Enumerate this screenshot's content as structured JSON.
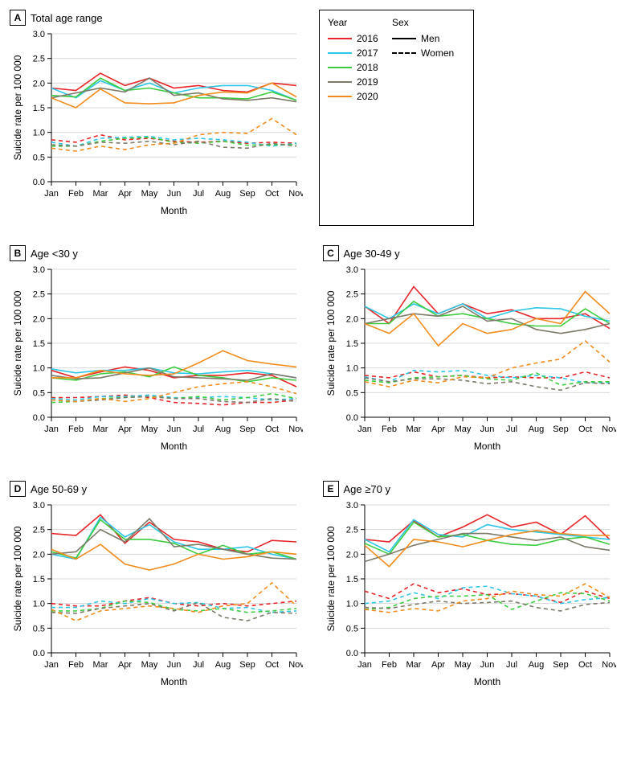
{
  "months": [
    "Jan",
    "Feb",
    "Mar",
    "Apr",
    "May",
    "Jun",
    "Jul",
    "Aug",
    "Sep",
    "Oct",
    "Nov"
  ],
  "ylabel": "Suicide rate per 100 000",
  "xlabel": "Month",
  "ylim": [
    0,
    3.0
  ],
  "ytick_step": 0.5,
  "grid_color": "#d9d9d9",
  "axis_color": "#000000",
  "background_color": "#ffffff",
  "axis_fontsize": 11,
  "label_fontsize": 12,
  "line_width": 1.6,
  "legend": {
    "year_title": "Year",
    "years": [
      {
        "label": "2016",
        "color": "#e8262a"
      },
      {
        "label": "2017",
        "color": "#2ec6e6"
      },
      {
        "label": "2018",
        "color": "#3dcc3d"
      },
      {
        "label": "2019",
        "color": "#7d7a69"
      },
      {
        "label": "2020",
        "color": "#f28c1c"
      }
    ],
    "sex_title": "Sex",
    "sexes": [
      {
        "label": "Men",
        "dash": "solid"
      },
      {
        "label": "Women",
        "dash": "dashed"
      }
    ]
  },
  "panels": [
    {
      "letter": "A",
      "title": "Total age range",
      "series": [
        {
          "color": "#e8262a",
          "dash": "solid",
          "values": [
            1.9,
            1.85,
            2.2,
            1.95,
            2.1,
            1.9,
            1.95,
            1.85,
            1.82,
            2.0,
            1.95
          ]
        },
        {
          "color": "#2ec6e6",
          "dash": "solid",
          "values": [
            1.9,
            1.7,
            2.05,
            1.85,
            2.0,
            1.8,
            1.9,
            1.95,
            1.95,
            1.85,
            1.65
          ]
        },
        {
          "color": "#3dcc3d",
          "dash": "solid",
          "values": [
            1.75,
            1.72,
            2.1,
            1.85,
            1.9,
            1.8,
            1.7,
            1.7,
            1.68,
            1.82,
            1.65
          ]
        },
        {
          "color": "#7d7a69",
          "dash": "solid",
          "values": [
            1.7,
            1.8,
            1.9,
            1.82,
            2.1,
            1.75,
            1.8,
            1.68,
            1.65,
            1.7,
            1.62
          ]
        },
        {
          "color": "#f28c1c",
          "dash": "solid",
          "values": [
            1.7,
            1.5,
            1.88,
            1.6,
            1.58,
            1.6,
            1.75,
            1.82,
            1.8,
            2.0,
            1.72
          ]
        },
        {
          "color": "#e8262a",
          "dash": "dashed",
          "values": [
            0.85,
            0.8,
            0.95,
            0.85,
            0.88,
            0.82,
            0.8,
            0.82,
            0.78,
            0.8,
            0.78
          ]
        },
        {
          "color": "#2ec6e6",
          "dash": "dashed",
          "values": [
            0.8,
            0.72,
            0.88,
            0.9,
            0.92,
            0.85,
            0.88,
            0.85,
            0.8,
            0.72,
            0.78
          ]
        },
        {
          "color": "#3dcc3d",
          "dash": "dashed",
          "values": [
            0.72,
            0.72,
            0.82,
            0.88,
            0.9,
            0.8,
            0.78,
            0.82,
            0.74,
            0.75,
            0.75
          ]
        },
        {
          "color": "#7d7a69",
          "dash": "dashed",
          "values": [
            0.75,
            0.72,
            0.8,
            0.78,
            0.82,
            0.75,
            0.82,
            0.7,
            0.68,
            0.78,
            0.72
          ]
        },
        {
          "color": "#f28c1c",
          "dash": "dashed",
          "values": [
            0.68,
            0.62,
            0.72,
            0.65,
            0.75,
            0.78,
            0.95,
            1.0,
            0.98,
            1.28,
            0.95
          ]
        }
      ]
    },
    {
      "letter": "B",
      "title": "Age <30 y",
      "series": [
        {
          "color": "#e8262a",
          "dash": "solid",
          "values": [
            0.95,
            0.8,
            0.92,
            1.02,
            0.95,
            0.8,
            0.85,
            0.85,
            0.9,
            0.85,
            0.62
          ]
        },
        {
          "color": "#2ec6e6",
          "dash": "solid",
          "values": [
            0.98,
            0.9,
            0.95,
            0.95,
            1.0,
            0.9,
            0.88,
            0.92,
            0.95,
            0.88,
            0.8
          ]
        },
        {
          "color": "#3dcc3d",
          "dash": "solid",
          "values": [
            0.8,
            0.75,
            0.88,
            0.92,
            0.82,
            1.02,
            0.85,
            0.8,
            0.72,
            0.8,
            0.75
          ]
        },
        {
          "color": "#7d7a69",
          "dash": "solid",
          "values": [
            0.85,
            0.78,
            0.8,
            0.9,
            1.0,
            0.82,
            0.8,
            0.78,
            0.75,
            0.88,
            0.8
          ]
        },
        {
          "color": "#f28c1c",
          "dash": "solid",
          "values": [
            0.8,
            0.8,
            0.95,
            0.88,
            0.85,
            0.88,
            1.1,
            1.35,
            1.15,
            1.08,
            1.02
          ]
        },
        {
          "color": "#e8262a",
          "dash": "dashed",
          "values": [
            0.4,
            0.4,
            0.42,
            0.45,
            0.4,
            0.3,
            0.28,
            0.25,
            0.3,
            0.3,
            0.35
          ]
        },
        {
          "color": "#2ec6e6",
          "dash": "dashed",
          "values": [
            0.38,
            0.35,
            0.42,
            0.42,
            0.45,
            0.4,
            0.4,
            0.42,
            0.4,
            0.35,
            0.38
          ]
        },
        {
          "color": "#3dcc3d",
          "dash": "dashed",
          "values": [
            0.3,
            0.32,
            0.38,
            0.4,
            0.42,
            0.38,
            0.42,
            0.35,
            0.4,
            0.48,
            0.38
          ]
        },
        {
          "color": "#7d7a69",
          "dash": "dashed",
          "values": [
            0.35,
            0.32,
            0.35,
            0.4,
            0.42,
            0.38,
            0.38,
            0.32,
            0.3,
            0.38,
            0.32
          ]
        },
        {
          "color": "#f28c1c",
          "dash": "dashed",
          "values": [
            0.35,
            0.32,
            0.38,
            0.32,
            0.38,
            0.5,
            0.62,
            0.68,
            0.72,
            0.62,
            0.48
          ]
        }
      ]
    },
    {
      "letter": "C",
      "title": "Age 30-49 y",
      "series": [
        {
          "color": "#e8262a",
          "dash": "solid",
          "values": [
            2.25,
            1.9,
            2.65,
            2.1,
            2.3,
            2.1,
            2.18,
            2.0,
            2.0,
            2.1,
            1.8
          ]
        },
        {
          "color": "#2ec6e6",
          "dash": "solid",
          "values": [
            2.25,
            2.0,
            2.3,
            2.1,
            2.3,
            2.0,
            2.15,
            2.22,
            2.2,
            2.05,
            1.95
          ]
        },
        {
          "color": "#3dcc3d",
          "dash": "solid",
          "values": [
            1.9,
            1.9,
            2.35,
            2.05,
            2.1,
            2.0,
            1.9,
            1.85,
            1.85,
            2.2,
            1.9
          ]
        },
        {
          "color": "#7d7a69",
          "dash": "solid",
          "values": [
            1.9,
            2.0,
            2.1,
            2.05,
            2.25,
            1.95,
            2.0,
            1.78,
            1.7,
            1.78,
            1.9
          ]
        },
        {
          "color": "#f28c1c",
          "dash": "solid",
          "values": [
            1.9,
            1.7,
            2.1,
            1.45,
            1.9,
            1.7,
            1.78,
            2.0,
            1.9,
            2.55,
            2.1
          ]
        },
        {
          "color": "#e8262a",
          "dash": "dashed",
          "values": [
            0.85,
            0.8,
            0.92,
            0.82,
            0.85,
            0.8,
            0.82,
            0.8,
            0.8,
            0.92,
            0.8
          ]
        },
        {
          "color": "#2ec6e6",
          "dash": "dashed",
          "values": [
            0.82,
            0.72,
            0.95,
            0.92,
            0.95,
            0.85,
            0.8,
            0.85,
            0.8,
            0.7,
            0.7
          ]
        },
        {
          "color": "#3dcc3d",
          "dash": "dashed",
          "values": [
            0.75,
            0.7,
            0.8,
            0.82,
            0.85,
            0.78,
            0.75,
            0.9,
            0.65,
            0.72,
            0.72
          ]
        },
        {
          "color": "#7d7a69",
          "dash": "dashed",
          "values": [
            0.8,
            0.72,
            0.78,
            0.78,
            0.75,
            0.68,
            0.72,
            0.62,
            0.55,
            0.7,
            0.68
          ]
        },
        {
          "color": "#f28c1c",
          "dash": "dashed",
          "values": [
            0.72,
            0.62,
            0.75,
            0.7,
            0.82,
            0.8,
            1.0,
            1.1,
            1.18,
            1.55,
            1.12
          ]
        }
      ]
    },
    {
      "letter": "D",
      "title": "Age 50-69 y",
      "series": [
        {
          "color": "#e8262a",
          "dash": "solid",
          "values": [
            2.42,
            2.38,
            2.8,
            2.22,
            2.65,
            2.3,
            2.25,
            2.1,
            2.05,
            2.28,
            2.25
          ]
        },
        {
          "color": "#2ec6e6",
          "dash": "solid",
          "values": [
            2.0,
            1.9,
            2.75,
            2.35,
            2.6,
            2.25,
            2.1,
            2.1,
            2.15,
            2.0,
            1.9
          ]
        },
        {
          "color": "#3dcc3d",
          "dash": "solid",
          "values": [
            2.05,
            1.92,
            2.7,
            2.3,
            2.3,
            2.22,
            2.0,
            2.18,
            2.0,
            2.05,
            1.9
          ]
        },
        {
          "color": "#7d7a69",
          "dash": "solid",
          "values": [
            2.0,
            2.05,
            2.5,
            2.25,
            2.72,
            2.15,
            2.2,
            2.1,
            2.0,
            1.92,
            1.9
          ]
        },
        {
          "color": "#f28c1c",
          "dash": "solid",
          "values": [
            2.1,
            1.9,
            2.2,
            1.8,
            1.68,
            1.8,
            2.0,
            1.9,
            1.95,
            2.05,
            2.0
          ]
        },
        {
          "color": "#e8262a",
          "dash": "dashed",
          "values": [
            1.0,
            0.95,
            0.95,
            1.05,
            1.12,
            1.0,
            0.95,
            1.0,
            0.95,
            1.0,
            1.05
          ]
        },
        {
          "color": "#2ec6e6",
          "dash": "dashed",
          "values": [
            0.92,
            0.92,
            1.05,
            1.0,
            1.1,
            1.0,
            1.02,
            0.9,
            0.92,
            0.82,
            0.85
          ]
        },
        {
          "color": "#3dcc3d",
          "dash": "dashed",
          "values": [
            0.85,
            0.85,
            0.9,
            1.05,
            1.02,
            0.88,
            0.85,
            0.9,
            0.82,
            0.85,
            0.9
          ]
        },
        {
          "color": "#7d7a69",
          "dash": "dashed",
          "values": [
            0.82,
            0.8,
            0.9,
            0.95,
            1.0,
            0.85,
            1.02,
            0.72,
            0.65,
            0.82,
            0.8
          ]
        },
        {
          "color": "#f28c1c",
          "dash": "dashed",
          "values": [
            0.88,
            0.65,
            0.85,
            0.9,
            0.95,
            0.9,
            0.82,
            0.95,
            1.0,
            1.42,
            0.95
          ]
        }
      ]
    },
    {
      "letter": "E",
      "title": "Age ≥70 y",
      "series": [
        {
          "color": "#e8262a",
          "dash": "solid",
          "values": [
            2.3,
            2.25,
            2.68,
            2.35,
            2.55,
            2.8,
            2.55,
            2.65,
            2.4,
            2.78,
            2.3
          ]
        },
        {
          "color": "#2ec6e6",
          "dash": "solid",
          "values": [
            2.3,
            2.05,
            2.7,
            2.4,
            2.35,
            2.6,
            2.5,
            2.45,
            2.4,
            2.35,
            2.3
          ]
        },
        {
          "color": "#3dcc3d",
          "dash": "solid",
          "values": [
            2.22,
            2.0,
            2.65,
            2.35,
            2.4,
            2.28,
            2.2,
            2.18,
            2.3,
            2.35,
            2.2
          ]
        },
        {
          "color": "#7d7a69",
          "dash": "solid",
          "values": [
            1.85,
            2.0,
            2.18,
            2.3,
            2.42,
            2.42,
            2.35,
            2.28,
            2.35,
            2.15,
            2.08
          ]
        },
        {
          "color": "#f28c1c",
          "dash": "solid",
          "values": [
            2.18,
            1.75,
            2.3,
            2.25,
            2.15,
            2.28,
            2.4,
            2.48,
            2.42,
            2.38,
            2.38
          ]
        },
        {
          "color": "#e8262a",
          "dash": "dashed",
          "values": [
            1.25,
            1.1,
            1.4,
            1.22,
            1.3,
            1.18,
            1.2,
            1.15,
            1.02,
            1.25,
            1.1
          ]
        },
        {
          "color": "#2ec6e6",
          "dash": "dashed",
          "values": [
            1.0,
            1.05,
            1.22,
            1.1,
            1.32,
            1.35,
            1.2,
            1.15,
            1.0,
            1.08,
            1.12
          ]
        },
        {
          "color": "#3dcc3d",
          "dash": "dashed",
          "values": [
            0.88,
            0.92,
            1.1,
            1.15,
            1.15,
            1.18,
            0.88,
            1.05,
            1.22,
            1.2,
            1.05
          ]
        },
        {
          "color": "#7d7a69",
          "dash": "dashed",
          "values": [
            0.92,
            0.9,
            0.98,
            1.05,
            1.0,
            1.02,
            1.05,
            0.92,
            0.85,
            0.98,
            1.02
          ]
        },
        {
          "color": "#f28c1c",
          "dash": "dashed",
          "values": [
            0.88,
            0.82,
            0.9,
            0.85,
            1.05,
            1.1,
            1.25,
            1.18,
            1.15,
            1.4,
            1.12
          ]
        }
      ]
    }
  ]
}
